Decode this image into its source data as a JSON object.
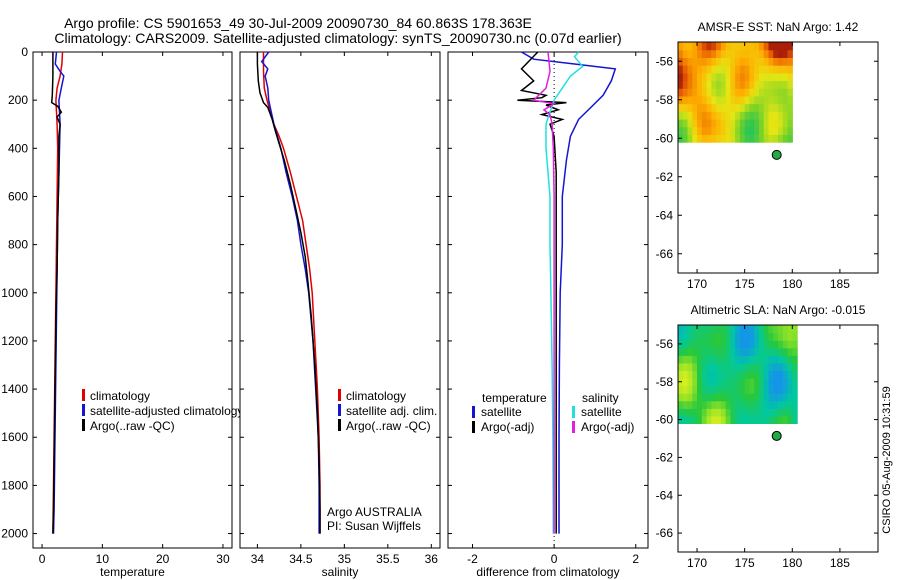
{
  "title_line1": "Argo profile: CS 5901653_49 30-Jul-2009 20090730_84 60.863S 178.363E",
  "title_line2": "Climatology: CARS2009. Satellite-adjusted climatology: synTS_20090730.nc (0.07d earlier)",
  "stamp": "CSIRO 05-Aug-2009 10:31:59",
  "colors": {
    "red": "#e00000",
    "blue": "#1414d2",
    "black": "#000000",
    "cyan": "#20e0e0",
    "magenta": "#e020e0"
  },
  "chart_data": [
    {
      "type": "line",
      "id": "temperature",
      "xlabel": "temperature",
      "xlim": [
        -1.5,
        31.5
      ],
      "xticks": [
        0,
        10,
        20,
        30
      ],
      "ylim": [
        0,
        2060
      ],
      "yticks": [
        0,
        200,
        400,
        600,
        800,
        1000,
        1200,
        1400,
        1600,
        1800,
        2000
      ],
      "yreverse": true,
      "legend": {
        "position": "lower-left",
        "labels": [
          "climatology",
          "satellite-adjusted climatology",
          "Argo(..raw -QC)"
        ]
      },
      "series": [
        {
          "name": "climatology",
          "color": "red",
          "points": [
            [
              3.4,
              0
            ],
            [
              3.3,
              50
            ],
            [
              3.0,
              100
            ],
            [
              2.5,
              150
            ],
            [
              2.3,
              200
            ],
            [
              2.4,
              250
            ],
            [
              2.5,
              300
            ],
            [
              2.6,
              400
            ],
            [
              2.5,
              600
            ],
            [
              2.4,
              800
            ],
            [
              2.3,
              1000
            ],
            [
              2.2,
              1200
            ],
            [
              2.1,
              1400
            ],
            [
              2.0,
              1600
            ],
            [
              1.9,
              1800
            ],
            [
              1.8,
              2000
            ]
          ]
        },
        {
          "name": "satellite-adjusted climatology",
          "color": "blue",
          "points": [
            [
              2.4,
              0
            ],
            [
              2.2,
              50
            ],
            [
              3.0,
              80
            ],
            [
              3.6,
              100
            ],
            [
              3.2,
              150
            ],
            [
              2.8,
              200
            ],
            [
              2.9,
              250
            ],
            [
              3.0,
              300
            ],
            [
              2.9,
              400
            ],
            [
              2.8,
              500
            ],
            [
              2.6,
              700
            ],
            [
              2.5,
              900
            ],
            [
              2.4,
              1100
            ],
            [
              2.3,
              1300
            ],
            [
              2.2,
              1500
            ],
            [
              2.1,
              1700
            ],
            [
              2.0,
              1900
            ],
            [
              1.9,
              2000
            ]
          ]
        },
        {
          "name": "Argo(..raw -QC)",
          "color": "black",
          "points": [
            [
              1.8,
              0
            ],
            [
              1.8,
              100
            ],
            [
              1.7,
              180
            ],
            [
              1.6,
              210
            ],
            [
              2.6,
              225
            ],
            [
              3.2,
              250
            ],
            [
              2.5,
              270
            ],
            [
              3.0,
              300
            ],
            [
              2.8,
              350
            ],
            [
              2.8,
              500
            ],
            [
              2.6,
              700
            ],
            [
              2.5,
              900
            ],
            [
              2.3,
              1100
            ],
            [
              2.2,
              1300
            ],
            [
              2.1,
              1500
            ],
            [
              2.0,
              1700
            ],
            [
              1.9,
              1900
            ],
            [
              1.8,
              2000
            ]
          ]
        }
      ]
    },
    {
      "type": "line",
      "id": "salinity",
      "xlabel": "salinity",
      "xlim": [
        33.8,
        36.1
      ],
      "xticks": [
        34,
        34.5,
        35,
        35.5,
        36
      ],
      "ylim": [
        0,
        2060
      ],
      "yreverse": true,
      "legend": {
        "position": "lower-right",
        "labels": [
          "climatology",
          "satellite adj. clim.",
          "Argo(..raw -QC)"
        ]
      },
      "annotation": [
        "Argo AUSTRALIA",
        "PI: Susan Wijffels"
      ],
      "series": [
        {
          "name": "climatology",
          "color": "red",
          "points": [
            [
              34.07,
              0
            ],
            [
              34.07,
              80
            ],
            [
              34.08,
              150
            ],
            [
              34.11,
              200
            ],
            [
              34.15,
              250
            ],
            [
              34.19,
              300
            ],
            [
              34.25,
              350
            ],
            [
              34.3,
              400
            ],
            [
              34.38,
              500
            ],
            [
              34.45,
              600
            ],
            [
              34.52,
              700
            ],
            [
              34.56,
              800
            ],
            [
              34.6,
              900
            ],
            [
              34.63,
              1000
            ],
            [
              34.66,
              1200
            ],
            [
              34.69,
              1400
            ],
            [
              34.71,
              1600
            ],
            [
              34.72,
              1800
            ],
            [
              34.72,
              2000
            ]
          ]
        },
        {
          "name": "satellite adj. clim.",
          "color": "blue",
          "points": [
            [
              34.13,
              0
            ],
            [
              34.05,
              40
            ],
            [
              34.12,
              70
            ],
            [
              34.09,
              100
            ],
            [
              34.12,
              150
            ],
            [
              34.13,
              200
            ],
            [
              34.16,
              250
            ],
            [
              34.19,
              300
            ],
            [
              34.23,
              350
            ],
            [
              34.27,
              400
            ],
            [
              34.33,
              500
            ],
            [
              34.4,
              600
            ],
            [
              34.46,
              700
            ],
            [
              34.5,
              800
            ],
            [
              34.55,
              900
            ],
            [
              34.59,
              1000
            ],
            [
              34.64,
              1200
            ],
            [
              34.67,
              1400
            ],
            [
              34.7,
              1600
            ],
            [
              34.71,
              1800
            ],
            [
              34.71,
              2000
            ]
          ]
        },
        {
          "name": "Argo(..raw -QC)",
          "color": "black",
          "points": [
            [
              34.0,
              0
            ],
            [
              34.0,
              50
            ],
            [
              34.01,
              120
            ],
            [
              34.03,
              170
            ],
            [
              34.07,
              210
            ],
            [
              34.12,
              230
            ],
            [
              34.14,
              250
            ],
            [
              34.17,
              280
            ],
            [
              34.2,
              320
            ],
            [
              34.25,
              380
            ],
            [
              34.31,
              450
            ],
            [
              34.38,
              550
            ],
            [
              34.44,
              650
            ],
            [
              34.5,
              750
            ],
            [
              34.55,
              850
            ],
            [
              34.58,
              950
            ],
            [
              34.62,
              1100
            ],
            [
              34.66,
              1300
            ],
            [
              34.69,
              1500
            ],
            [
              34.71,
              1700
            ],
            [
              34.72,
              1900
            ],
            [
              34.72,
              2000
            ]
          ]
        }
      ]
    },
    {
      "type": "line",
      "id": "difference",
      "xlabel": "difference from climatology",
      "xlim": [
        -2.6,
        2.3
      ],
      "xticks": [
        -2,
        0,
        2
      ],
      "ylim": [
        0,
        2060
      ],
      "yreverse": true,
      "zero_line": "dotted",
      "legend": {
        "position": "lower-center",
        "headers": [
          "temperature",
          "salinity"
        ],
        "labels": [
          "satellite",
          "Argo(-adj)",
          "satellite",
          "Argo(-adj)"
        ]
      },
      "series": [
        {
          "name": "temperature satellite",
          "color": "blue",
          "points": [
            [
              -0.8,
              0
            ],
            [
              -0.5,
              30
            ],
            [
              0.5,
              50
            ],
            [
              1.5,
              70
            ],
            [
              1.4,
              120
            ],
            [
              1.2,
              180
            ],
            [
              0.9,
              230
            ],
            [
              0.6,
              280
            ],
            [
              0.4,
              350
            ],
            [
              0.3,
              450
            ],
            [
              0.2,
              600
            ],
            [
              0.2,
              800
            ],
            [
              0.15,
              1000
            ],
            [
              0.13,
              1300
            ],
            [
              0.12,
              1600
            ],
            [
              0.12,
              2000
            ]
          ]
        },
        {
          "name": "temperature Argo(-adj)",
          "color": "black",
          "points": [
            [
              -0.4,
              0
            ],
            [
              -0.8,
              70
            ],
            [
              -0.5,
              120
            ],
            [
              -0.8,
              160
            ],
            [
              -0.2,
              180
            ],
            [
              -0.3,
              190
            ],
            [
              -0.9,
              200
            ],
            [
              0.3,
              210
            ],
            [
              -0.2,
              220
            ],
            [
              0.1,
              240
            ],
            [
              -0.3,
              260
            ],
            [
              0.2,
              280
            ],
            [
              -0.1,
              300
            ],
            [
              0.0,
              350
            ],
            [
              0.05,
              500
            ],
            [
              0.05,
              1000
            ],
            [
              0.05,
              1500
            ],
            [
              0.05,
              2000
            ]
          ]
        },
        {
          "name": "salinity satellite",
          "color": "cyan",
          "points": [
            [
              0.6,
              0
            ],
            [
              0.5,
              20
            ],
            [
              0.7,
              60
            ],
            [
              0.4,
              100
            ],
            [
              0.2,
              150
            ],
            [
              0.0,
              200
            ],
            [
              -0.1,
              250
            ],
            [
              -0.2,
              300
            ],
            [
              -0.2,
              400
            ],
            [
              -0.15,
              500
            ],
            [
              -0.1,
              600
            ],
            [
              -0.1,
              800
            ],
            [
              -0.08,
              1000
            ],
            [
              -0.05,
              1300
            ],
            [
              -0.03,
              1600
            ],
            [
              -0.02,
              2000
            ]
          ]
        },
        {
          "name": "salinity Argo(-adj)",
          "color": "magenta",
          "points": [
            [
              -0.15,
              0
            ],
            [
              -0.1,
              80
            ],
            [
              -0.2,
              150
            ],
            [
              -0.5,
              200
            ],
            [
              0.0,
              215
            ],
            [
              -0.25,
              240
            ],
            [
              -0.1,
              260
            ],
            [
              -0.05,
              300
            ],
            [
              -0.02,
              400
            ],
            [
              0.0,
              600
            ],
            [
              0.0,
              1000
            ],
            [
              0.0,
              1500
            ],
            [
              0.0,
              2000
            ]
          ]
        }
      ]
    },
    {
      "type": "heatmap",
      "id": "sst",
      "title": "AMSR-E SST: NaN Argo: 1.42",
      "xlim": [
        168,
        189
      ],
      "ylim": [
        -67,
        -55
      ],
      "xticks": [
        170,
        175,
        180,
        185
      ],
      "yticks": [
        -56,
        -58,
        -60,
        -62,
        -64,
        -66
      ],
      "field": {
        "lon_range": [
          168,
          180
        ],
        "lat_range": [
          -60.2,
          -55
        ],
        "palette": "sst"
      },
      "marker": {
        "lon": 178.363,
        "lat": -60.863,
        "color": "#22aa44"
      }
    },
    {
      "type": "heatmap",
      "id": "sla",
      "title": "Altimetric SLA: NaN Argo: -0.015",
      "xlim": [
        168,
        189
      ],
      "ylim": [
        -67,
        -55
      ],
      "xticks": [
        170,
        175,
        180,
        185
      ],
      "yticks": [
        -56,
        -58,
        -60,
        -62,
        -64,
        -66
      ],
      "field": {
        "lon_range": [
          168,
          180.2
        ],
        "lat_range": [
          -60.2,
          -55
        ],
        "palette": "sla"
      },
      "marker": {
        "lon": 178.363,
        "lat": -60.863,
        "color": "#22aa44"
      }
    }
  ]
}
